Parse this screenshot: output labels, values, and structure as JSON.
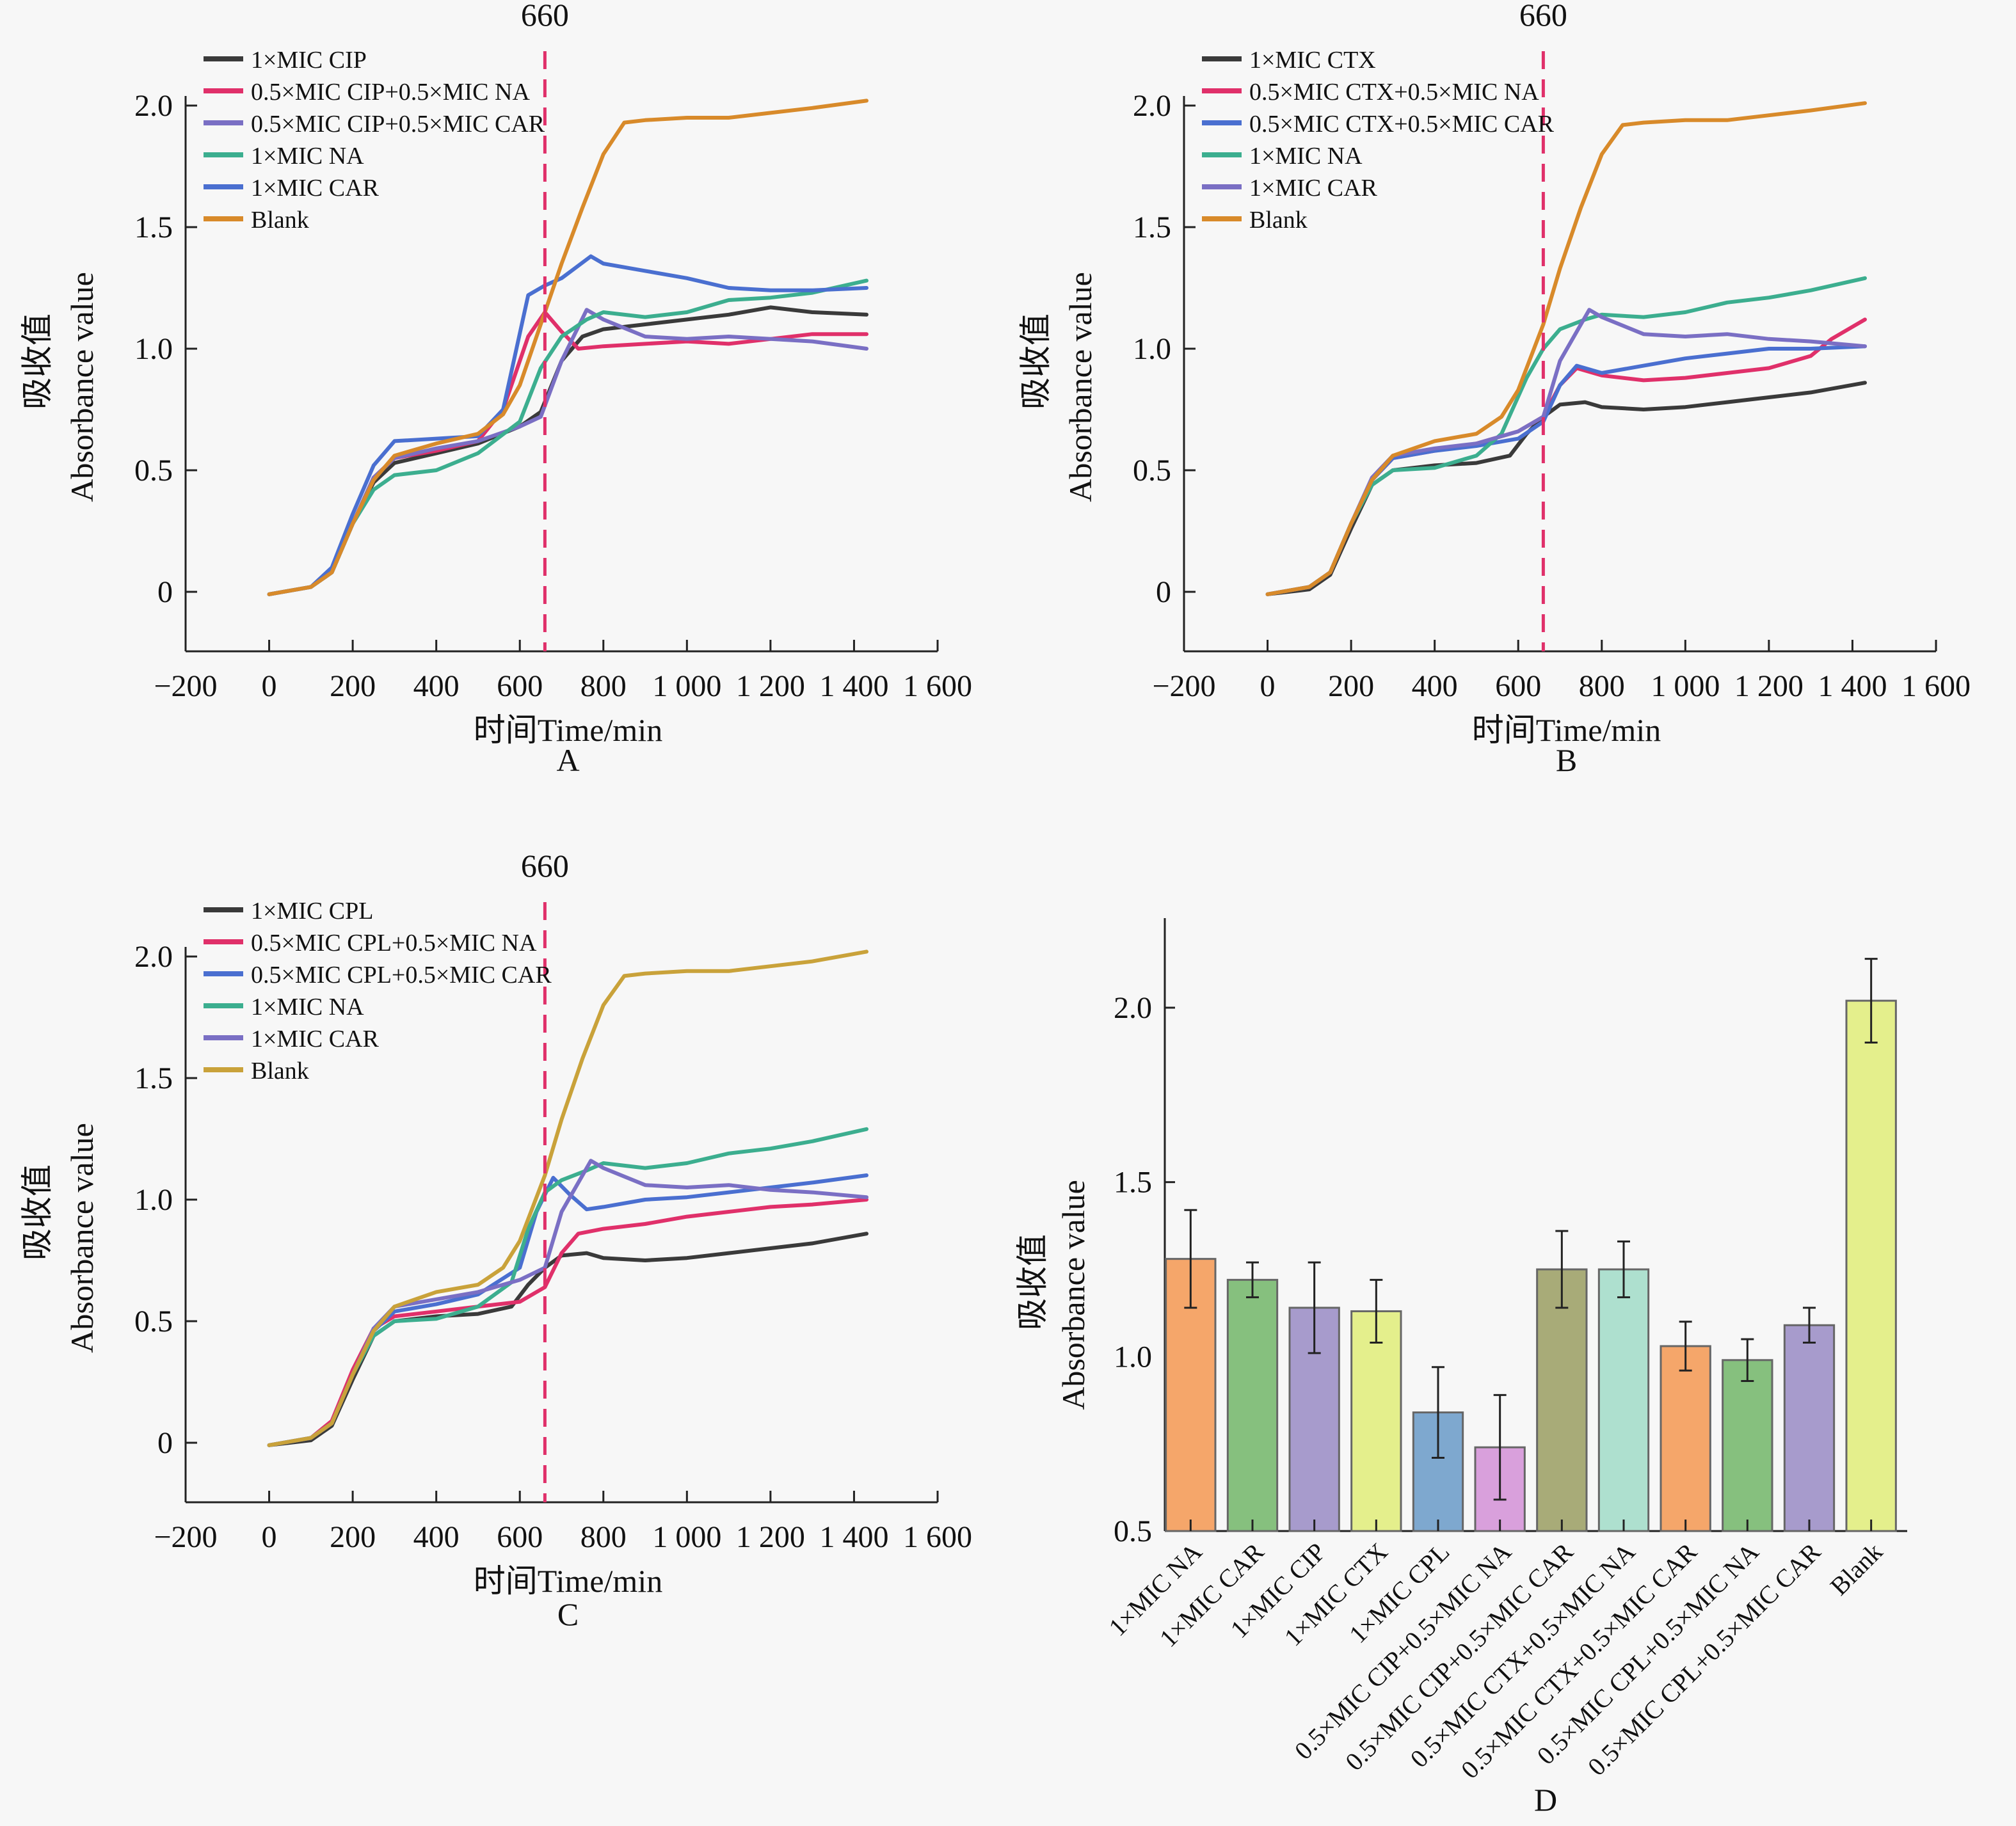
{
  "chart_data": [
    {
      "panel": "A",
      "type": "line",
      "xlabel": "时间Time/min",
      "ylabel_cn": "吸收值",
      "ylabel": "Absorbance value",
      "xlim": [
        -200,
        1600
      ],
      "ylim": [
        -0.25,
        2.1
      ],
      "xticks": [
        -200,
        0,
        200,
        400,
        600,
        800,
        1000,
        1200,
        1400,
        1600
      ],
      "xtick_labels": [
        "−200",
        "0",
        "200",
        "400",
        "600",
        "800",
        "1 000",
        "1 200",
        "1 400",
        "1 600"
      ],
      "yticks": [
        0,
        0.5,
        1.0,
        1.5,
        2.0
      ],
      "ytick_labels": [
        "0",
        "0.5",
        "1.0",
        "1.5",
        "2.0"
      ],
      "vline": {
        "x": 660,
        "label": "660",
        "color": "#e0306a"
      },
      "legend_position": "top-left",
      "series": [
        {
          "name": "1×MIC CIP",
          "color": "#3a3a3a",
          "x": [
            0,
            100,
            150,
            200,
            250,
            300,
            400,
            500,
            600,
            650,
            700,
            750,
            800,
            900,
            1000,
            1100,
            1200,
            1300,
            1430
          ],
          "y": [
            -0.01,
            0.02,
            0.08,
            0.28,
            0.45,
            0.53,
            0.57,
            0.61,
            0.68,
            0.74,
            0.95,
            1.05,
            1.08,
            1.1,
            1.12,
            1.14,
            1.17,
            1.15,
            1.14
          ]
        },
        {
          "name": "0.5×MIC CIP+0.5×MIC NA",
          "color": "#e0306a",
          "x": [
            0,
            100,
            150,
            200,
            250,
            300,
            400,
            500,
            560,
            620,
            660,
            700,
            740,
            800,
            900,
            1000,
            1100,
            1200,
            1300,
            1430
          ],
          "y": [
            -0.01,
            0.02,
            0.08,
            0.28,
            0.47,
            0.55,
            0.58,
            0.62,
            0.75,
            1.05,
            1.15,
            1.07,
            1.0,
            1.01,
            1.02,
            1.03,
            1.02,
            1.04,
            1.06,
            1.06
          ]
        },
        {
          "name": "0.5×MIC CIP+0.5×MIC CAR",
          "color": "#7a6fc4",
          "x": [
            0,
            100,
            150,
            200,
            250,
            300,
            400,
            500,
            600,
            650,
            700,
            760,
            800,
            900,
            1000,
            1100,
            1200,
            1300,
            1430
          ],
          "y": [
            -0.01,
            0.02,
            0.08,
            0.28,
            0.47,
            0.55,
            0.59,
            0.62,
            0.68,
            0.72,
            0.95,
            1.16,
            1.12,
            1.05,
            1.04,
            1.05,
            1.04,
            1.03,
            1.0
          ]
        },
        {
          "name": "1×MIC NA",
          "color": "#3cae8f",
          "x": [
            0,
            100,
            150,
            200,
            250,
            300,
            400,
            500,
            600,
            650,
            700,
            760,
            800,
            900,
            1000,
            1100,
            1200,
            1300,
            1430
          ],
          "y": [
            -0.01,
            0.02,
            0.08,
            0.28,
            0.42,
            0.48,
            0.5,
            0.57,
            0.7,
            0.92,
            1.05,
            1.12,
            1.15,
            1.13,
            1.15,
            1.2,
            1.21,
            1.23,
            1.28
          ]
        },
        {
          "name": "1×MIC CAR",
          "color": "#4a6fd0",
          "x": [
            0,
            100,
            150,
            200,
            250,
            300,
            400,
            500,
            560,
            620,
            660,
            700,
            770,
            800,
            900,
            1000,
            1100,
            1200,
            1300,
            1430
          ],
          "y": [
            -0.01,
            0.02,
            0.1,
            0.32,
            0.52,
            0.62,
            0.63,
            0.64,
            0.75,
            1.22,
            1.26,
            1.29,
            1.38,
            1.35,
            1.32,
            1.29,
            1.25,
            1.24,
            1.24,
            1.25
          ]
        },
        {
          "name": "Blank",
          "color": "#d88a2a",
          "x": [
            0,
            100,
            150,
            200,
            250,
            300,
            400,
            500,
            560,
            600,
            660,
            700,
            750,
            800,
            850,
            900,
            1000,
            1100,
            1200,
            1300,
            1430
          ],
          "y": [
            -0.01,
            0.02,
            0.08,
            0.28,
            0.46,
            0.56,
            0.61,
            0.65,
            0.73,
            0.85,
            1.15,
            1.35,
            1.58,
            1.8,
            1.93,
            1.94,
            1.95,
            1.95,
            1.97,
            1.99,
            2.02
          ]
        }
      ]
    },
    {
      "panel": "B",
      "type": "line",
      "xlabel": "时间Time/min",
      "ylabel_cn": "吸收值",
      "ylabel": "Absorbance value",
      "xlim": [
        -200,
        1600
      ],
      "ylim": [
        -0.25,
        2.1
      ],
      "xticks": [
        -200,
        0,
        200,
        400,
        600,
        800,
        1000,
        1200,
        1400,
        1600
      ],
      "xtick_labels": [
        "−200",
        "0",
        "200",
        "400",
        "600",
        "800",
        "1 000",
        "1 200",
        "1 400",
        "1 600"
      ],
      "yticks": [
        0,
        0.5,
        1.0,
        1.5,
        2.0
      ],
      "ytick_labels": [
        "0",
        "0.5",
        "1.0",
        "1.5",
        "2.0"
      ],
      "vline": {
        "x": 660,
        "label": "660",
        "color": "#e0306a"
      },
      "legend_position": "top-left",
      "series": [
        {
          "name": "1×MIC CTX",
          "color": "#3a3a3a",
          "x": [
            0,
            100,
            150,
            200,
            250,
            300,
            400,
            500,
            580,
            620,
            660,
            700,
            760,
            800,
            900,
            1000,
            1100,
            1200,
            1300,
            1430
          ],
          "y": [
            -0.01,
            0.01,
            0.07,
            0.26,
            0.44,
            0.5,
            0.52,
            0.53,
            0.56,
            0.65,
            0.72,
            0.77,
            0.78,
            0.76,
            0.75,
            0.76,
            0.78,
            0.8,
            0.82,
            0.86
          ]
        },
        {
          "name": "0.5×MIC CTX+0.5×MIC NA",
          "color": "#e0306a",
          "x": [
            0,
            100,
            150,
            200,
            250,
            300,
            400,
            500,
            600,
            660,
            700,
            740,
            800,
            900,
            1000,
            1100,
            1200,
            1300,
            1350,
            1430
          ],
          "y": [
            -0.01,
            0.02,
            0.08,
            0.28,
            0.46,
            0.55,
            0.58,
            0.61,
            0.66,
            0.72,
            0.85,
            0.92,
            0.89,
            0.87,
            0.88,
            0.9,
            0.92,
            0.97,
            1.04,
            1.12
          ]
        },
        {
          "name": "0.5×MIC CTX+0.5×MIC CAR",
          "color": "#4a6fd0",
          "x": [
            0,
            100,
            150,
            200,
            250,
            300,
            400,
            500,
            600,
            660,
            700,
            740,
            800,
            900,
            1000,
            1100,
            1200,
            1300,
            1430
          ],
          "y": [
            -0.01,
            0.02,
            0.08,
            0.28,
            0.46,
            0.55,
            0.58,
            0.6,
            0.63,
            0.7,
            0.85,
            0.93,
            0.9,
            0.93,
            0.96,
            0.98,
            1.0,
            1.0,
            1.01
          ]
        },
        {
          "name": "1×MIC NA",
          "color": "#3cae8f",
          "x": [
            0,
            100,
            150,
            200,
            250,
            300,
            400,
            500,
            560,
            620,
            660,
            700,
            760,
            800,
            900,
            1000,
            1100,
            1200,
            1300,
            1430
          ],
          "y": [
            -0.01,
            0.02,
            0.08,
            0.28,
            0.44,
            0.5,
            0.51,
            0.56,
            0.65,
            0.88,
            1.0,
            1.08,
            1.12,
            1.14,
            1.13,
            1.15,
            1.19,
            1.21,
            1.24,
            1.29
          ]
        },
        {
          "name": "1×MIC CAR",
          "color": "#7a6fc4",
          "x": [
            0,
            100,
            150,
            200,
            250,
            300,
            400,
            500,
            600,
            660,
            700,
            770,
            800,
            900,
            1000,
            1100,
            1200,
            1300,
            1430
          ],
          "y": [
            -0.01,
            0.02,
            0.08,
            0.28,
            0.47,
            0.56,
            0.59,
            0.61,
            0.66,
            0.72,
            0.95,
            1.16,
            1.13,
            1.06,
            1.05,
            1.06,
            1.04,
            1.03,
            1.01
          ]
        },
        {
          "name": "Blank",
          "color": "#d88a2a",
          "x": [
            0,
            100,
            150,
            200,
            250,
            300,
            400,
            500,
            560,
            600,
            660,
            700,
            750,
            800,
            850,
            900,
            1000,
            1100,
            1200,
            1300,
            1430
          ],
          "y": [
            -0.01,
            0.02,
            0.08,
            0.28,
            0.46,
            0.56,
            0.62,
            0.65,
            0.72,
            0.83,
            1.1,
            1.33,
            1.58,
            1.8,
            1.92,
            1.93,
            1.94,
            1.94,
            1.96,
            1.98,
            2.01
          ]
        }
      ]
    },
    {
      "panel": "C",
      "type": "line",
      "xlabel": "时间Time/min",
      "ylabel_cn": "吸收值",
      "ylabel": "Absorbance value",
      "xlim": [
        -200,
        1600
      ],
      "ylim": [
        -0.25,
        2.1
      ],
      "xticks": [
        -200,
        0,
        200,
        400,
        600,
        800,
        1000,
        1200,
        1400,
        1600
      ],
      "xtick_labels": [
        "−200",
        "0",
        "200",
        "400",
        "600",
        "800",
        "1 000",
        "1 200",
        "1 400",
        "1 600"
      ],
      "yticks": [
        0,
        0.5,
        1.0,
        1.5,
        2.0
      ],
      "ytick_labels": [
        "0",
        "0.5",
        "1.0",
        "1.5",
        "2.0"
      ],
      "vline": {
        "x": 660,
        "label": "660",
        "color": "#e0306a"
      },
      "legend_position": "top-left",
      "series": [
        {
          "name": "1×MIC CPL",
          "color": "#3a3a3a",
          "x": [
            0,
            100,
            150,
            200,
            250,
            300,
            400,
            500,
            580,
            620,
            660,
            700,
            760,
            800,
            900,
            1000,
            1100,
            1200,
            1300,
            1430
          ],
          "y": [
            -0.01,
            0.01,
            0.07,
            0.26,
            0.44,
            0.5,
            0.52,
            0.53,
            0.56,
            0.65,
            0.72,
            0.77,
            0.78,
            0.76,
            0.75,
            0.76,
            0.78,
            0.8,
            0.82,
            0.86
          ]
        },
        {
          "name": "0.5×MIC CPL+0.5×MIC NA",
          "color": "#e0306a",
          "x": [
            0,
            100,
            150,
            200,
            250,
            300,
            400,
            500,
            600,
            660,
            700,
            740,
            800,
            900,
            1000,
            1100,
            1200,
            1300,
            1430
          ],
          "y": [
            -0.01,
            0.02,
            0.09,
            0.3,
            0.47,
            0.52,
            0.54,
            0.56,
            0.58,
            0.64,
            0.78,
            0.86,
            0.88,
            0.9,
            0.93,
            0.95,
            0.97,
            0.98,
            1.0
          ]
        },
        {
          "name": "0.5×MIC CPL+0.5×MIC CAR",
          "color": "#4a6fd0",
          "x": [
            0,
            100,
            150,
            200,
            250,
            300,
            400,
            500,
            600,
            640,
            680,
            720,
            760,
            800,
            900,
            1000,
            1100,
            1200,
            1300,
            1430
          ],
          "y": [
            -0.01,
            0.02,
            0.08,
            0.28,
            0.46,
            0.54,
            0.57,
            0.61,
            0.72,
            0.95,
            1.09,
            1.02,
            0.96,
            0.97,
            1.0,
            1.01,
            1.03,
            1.05,
            1.07,
            1.1
          ]
        },
        {
          "name": "1×MIC NA",
          "color": "#3cae8f",
          "x": [
            0,
            100,
            150,
            200,
            250,
            300,
            400,
            500,
            580,
            620,
            660,
            700,
            760,
            800,
            900,
            1000,
            1100,
            1200,
            1300,
            1430
          ],
          "y": [
            -0.01,
            0.02,
            0.08,
            0.28,
            0.44,
            0.5,
            0.51,
            0.56,
            0.66,
            0.88,
            1.03,
            1.08,
            1.12,
            1.15,
            1.13,
            1.15,
            1.19,
            1.21,
            1.24,
            1.29
          ]
        },
        {
          "name": "1×MIC CAR",
          "color": "#7a6fc4",
          "x": [
            0,
            100,
            150,
            200,
            250,
            300,
            400,
            500,
            600,
            660,
            700,
            770,
            800,
            900,
            1000,
            1100,
            1200,
            1300,
            1430
          ],
          "y": [
            -0.01,
            0.02,
            0.08,
            0.28,
            0.47,
            0.56,
            0.59,
            0.62,
            0.67,
            0.72,
            0.95,
            1.16,
            1.13,
            1.06,
            1.05,
            1.06,
            1.04,
            1.03,
            1.01
          ]
        },
        {
          "name": "Blank",
          "color": "#c9a23a",
          "x": [
            0,
            100,
            150,
            200,
            250,
            300,
            400,
            500,
            560,
            600,
            660,
            700,
            750,
            800,
            850,
            900,
            1000,
            1100,
            1200,
            1300,
            1430
          ],
          "y": [
            -0.01,
            0.02,
            0.08,
            0.28,
            0.46,
            0.56,
            0.62,
            0.65,
            0.72,
            0.83,
            1.1,
            1.33,
            1.58,
            1.8,
            1.92,
            1.93,
            1.94,
            1.94,
            1.96,
            1.98,
            2.02
          ]
        }
      ]
    },
    {
      "panel": "D",
      "type": "bar",
      "ylabel_cn": "吸收值",
      "ylabel": "Absorbance value",
      "ylim": [
        0.5,
        2.25
      ],
      "yticks": [
        0.5,
        1.0,
        1.5,
        2.0
      ],
      "ytick_labels": [
        "0.5",
        "1.0",
        "1.5",
        "2.0"
      ],
      "categories": [
        "1×MIC NA",
        "1×MIC CAR",
        "1×MIC CIP",
        "1×MIC CTX",
        "1×MIC CPL",
        "0.5×MIC CIP+0.5×MIC NA",
        "0.5×MIC CIP+0.5×MIC CAR",
        "0.5×MIC CTX+0.5×MIC NA",
        "0.5×MIC CTX+0.5×MIC CAR",
        "0.5×MIC CPL+0.5×MIC NA",
        "0.5×MIC CPL+0.5×MIC CAR",
        "Blank"
      ],
      "values": [
        1.28,
        1.22,
        1.14,
        1.13,
        0.84,
        0.74,
        1.25,
        1.25,
        1.03,
        0.99,
        1.09,
        2.02
      ],
      "errors": [
        0.14,
        0.05,
        0.13,
        0.09,
        0.13,
        0.15,
        0.11,
        0.08,
        0.07,
        0.06,
        0.05,
        0.12
      ],
      "colors": [
        "#f5a66a",
        "#86c07e",
        "#a79bcc",
        "#e4ef8c",
        "#7ea8cf",
        "#d9a0dc",
        "#a8ab78",
        "#aee0cf",
        "#f5a66a",
        "#86c07e",
        "#a79bcc",
        "#e4ef8c"
      ]
    }
  ],
  "panel_labels": [
    "A",
    "B",
    "C",
    "D"
  ]
}
